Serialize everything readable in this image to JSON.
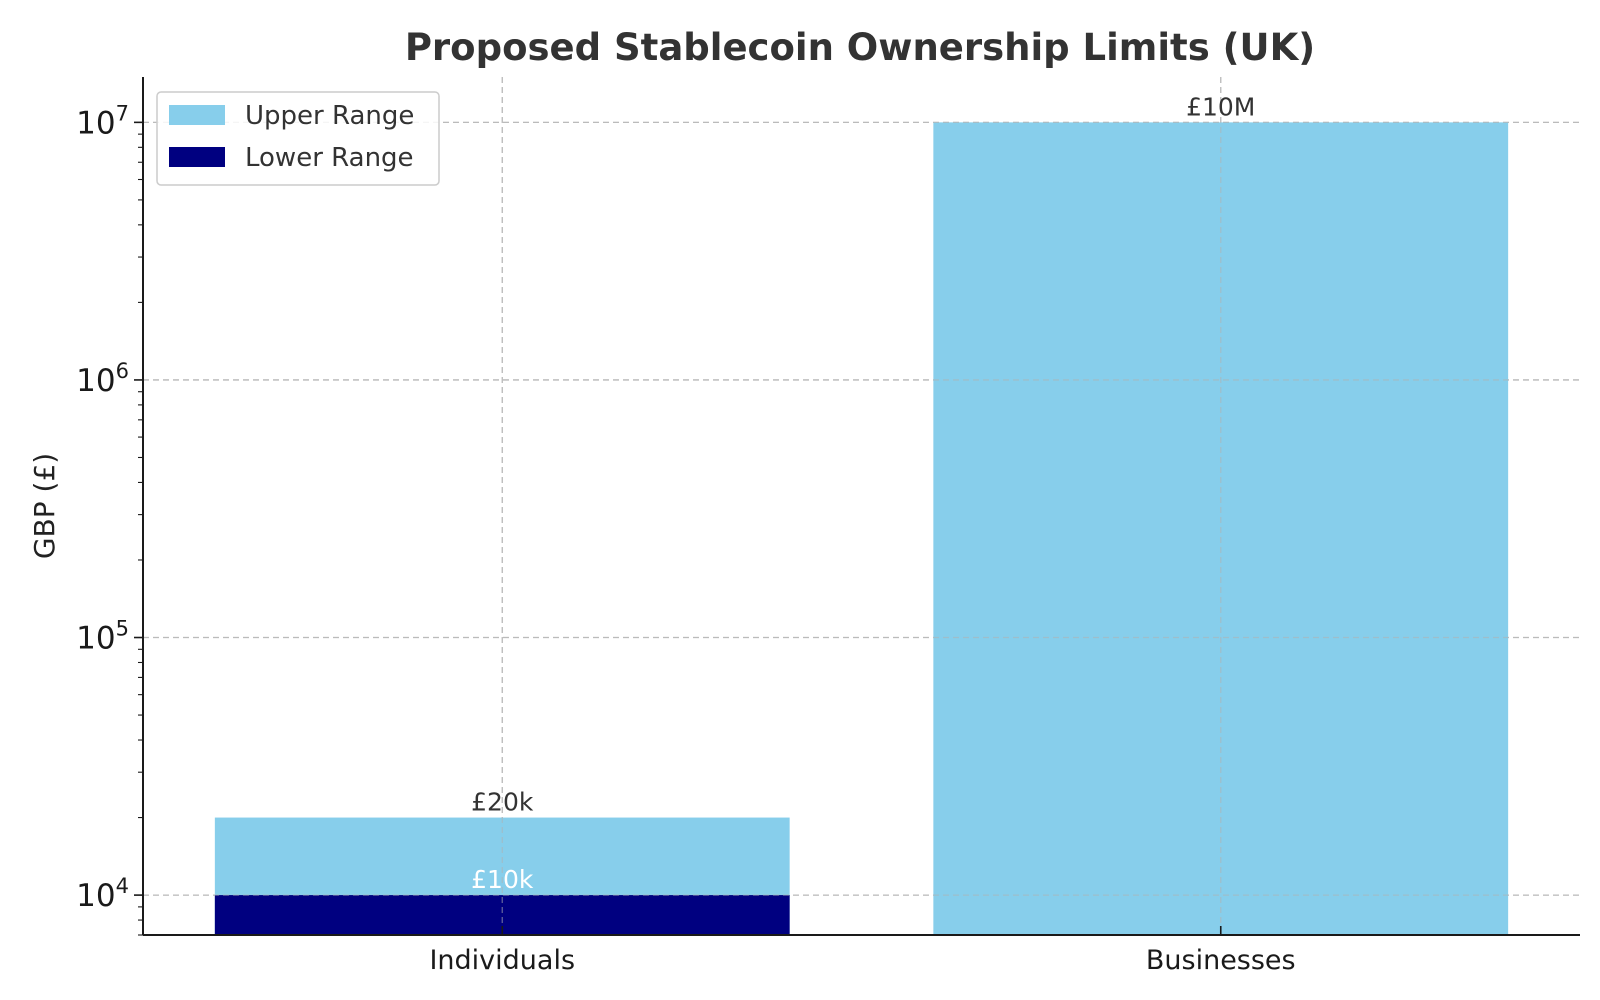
{
  "chart_data": {
    "type": "bar",
    "title": "Proposed Stablecoin Ownership Limits (UK)",
    "xlabel": "",
    "ylabel": "GBP (£)",
    "y_scale": "log",
    "ylim": [
      7000,
      15000000
    ],
    "y_ticks": [
      {
        "value": 10000,
        "base": "10",
        "exp": "4"
      },
      {
        "value": 100000,
        "base": "10",
        "exp": "5"
      },
      {
        "value": 1000000,
        "base": "10",
        "exp": "6"
      },
      {
        "value": 10000000,
        "base": "10",
        "exp": "7"
      }
    ],
    "categories": [
      "Individuals",
      "Businesses"
    ],
    "series": [
      {
        "name": "Upper Range",
        "color": "#87CEEB",
        "values": [
          20000,
          10000000
        ],
        "labels": [
          "£20k",
          "£10M"
        ],
        "label_color": "#333333"
      },
      {
        "name": "Lower Range",
        "color": "#000080",
        "values": [
          10000,
          null
        ],
        "labels": [
          "£10k",
          null
        ],
        "label_color": "#ffffff"
      }
    ],
    "grid": true,
    "legend_position": "top-left"
  }
}
